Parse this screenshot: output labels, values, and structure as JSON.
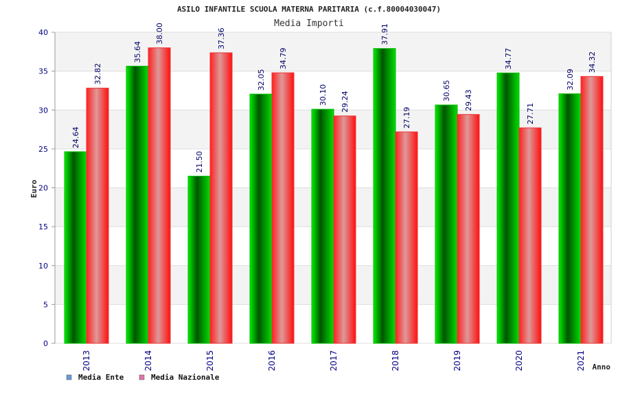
{
  "chart_data": {
    "type": "bar",
    "title": "ASILO INFANTILE SCUOLA MATERNA PARITARIA (c.f.80004030047)",
    "subtitle": "Media Importi",
    "xlabel": "Anno",
    "ylabel": "Euro",
    "ylim": [
      0,
      40
    ],
    "yticks": [
      "0",
      "5",
      "10",
      "15",
      "20",
      "25",
      "30",
      "35",
      "40"
    ],
    "grid": true,
    "legend_position": "bottom-left",
    "categories": [
      "2013",
      "2014",
      "2015",
      "2016",
      "2017",
      "2018",
      "2019",
      "2020",
      "2021"
    ],
    "series": [
      {
        "name": "Media Ente",
        "legend_color": "#6699dd",
        "bar_color": "#00aa00",
        "values": [
          24.64,
          35.64,
          21.5,
          32.05,
          30.1,
          37.91,
          30.65,
          34.77,
          32.09
        ],
        "labels": [
          "24.64",
          "35.64",
          "21.50",
          "32.05",
          "30.10",
          "37.91",
          "30.65",
          "34.77",
          "32.09"
        ]
      },
      {
        "name": "Media Nazionale",
        "legend_color": "#dd77aa",
        "bar_color": "#ee1111",
        "values": [
          32.82,
          38.0,
          37.36,
          34.79,
          29.24,
          27.19,
          29.43,
          27.71,
          34.32
        ],
        "labels": [
          "32.82",
          "38.00",
          "37.36",
          "34.79",
          "29.24",
          "27.19",
          "29.43",
          "27.71",
          "34.32"
        ]
      }
    ]
  }
}
